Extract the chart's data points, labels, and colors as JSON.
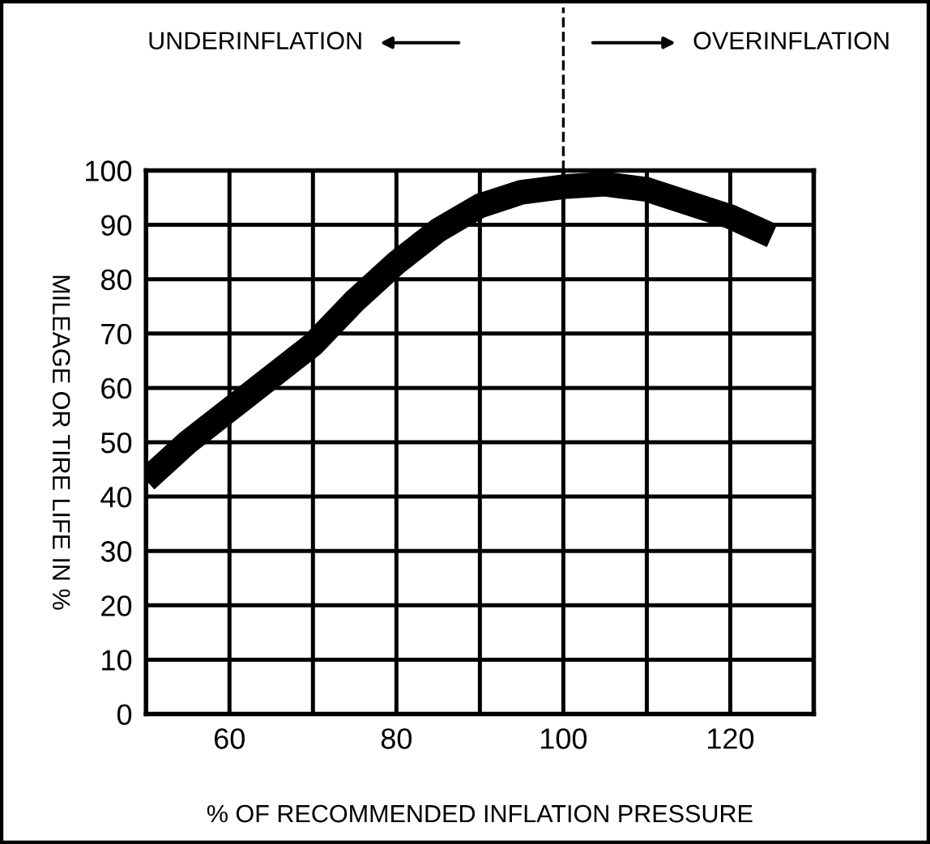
{
  "chart_data": {
    "type": "line",
    "xlabel": "% OF RECOMMENDED INFLATION PRESSURE",
    "ylabel": "MILEAGE OR TIRE LIFE IN %",
    "x": [
      50,
      55,
      60,
      65,
      70,
      75,
      80,
      85,
      90,
      95,
      100,
      105,
      110,
      115,
      120,
      125
    ],
    "series": [
      {
        "color": "#000000",
        "values": [
          43,
          50,
          56,
          62,
          68,
          76,
          83,
          89,
          93.5,
          96,
          97,
          97.5,
          96.5,
          94,
          91.5,
          88
        ]
      }
    ],
    "xlim": [
      50,
      130
    ],
    "xticks": [
      {
        "value": 50,
        "label": null
      },
      60,
      {
        "value": 70,
        "label": null
      },
      80,
      {
        "value": 90,
        "label": null
      },
      100,
      {
        "value": 110,
        "label": null
      },
      120,
      {
        "value": 130,
        "label": null
      }
    ],
    "ylim": [
      0,
      100
    ],
    "yticks": [
      0,
      10,
      20,
      30,
      40,
      50,
      60,
      70,
      80,
      90,
      100
    ],
    "grid": true,
    "marker": "none",
    "line_style": "solid",
    "annotations": [
      "UNDERINFLATION",
      "OVERINFLATION"
    ]
  }
}
